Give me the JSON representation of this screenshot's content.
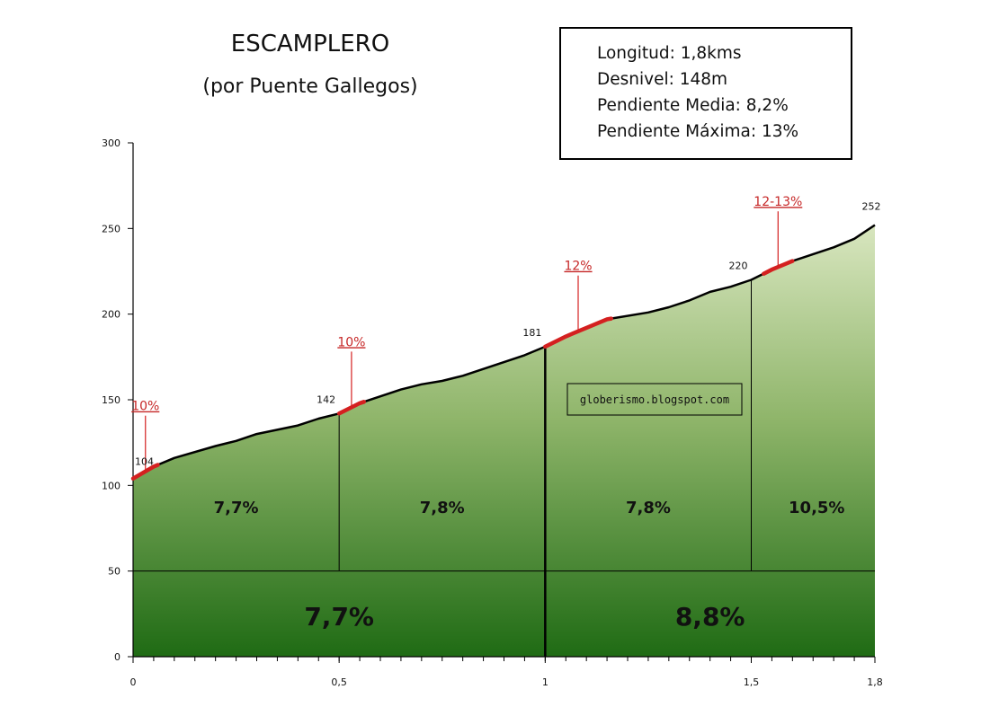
{
  "title": "ESCAMPLERO",
  "subtitle": "(por Puente Gallegos)",
  "info": [
    "Longitud: 1,8kms",
    "Desnivel: 148m",
    "Pendiente Media: 8,2%",
    "Pendiente Máxima: 13%"
  ],
  "watermark": "globerismo.blogspot.com",
  "chart_data": {
    "type": "area",
    "xlim": [
      0,
      1.8
    ],
    "ylim": [
      0,
      300
    ],
    "x_ticks": [
      {
        "value": 0,
        "label": "0"
      },
      {
        "value": 0.5,
        "label": "0,5"
      },
      {
        "value": 1,
        "label": "1"
      },
      {
        "value": 1.5,
        "label": "1,5"
      },
      {
        "value": 1.8,
        "label": "1,8"
      }
    ],
    "y_ticks": [
      {
        "value": 0,
        "label": "0"
      },
      {
        "value": 50,
        "label": "50"
      },
      {
        "value": 100,
        "label": "100"
      },
      {
        "value": 150,
        "label": "150"
      },
      {
        "value": 200,
        "label": "200"
      },
      {
        "value": 250,
        "label": "250"
      },
      {
        "value": 300,
        "label": "300"
      }
    ],
    "profile": [
      [
        0,
        104
      ],
      [
        0.05,
        111
      ],
      [
        0.1,
        116
      ],
      [
        0.2,
        123
      ],
      [
        0.25,
        126
      ],
      [
        0.3,
        130
      ],
      [
        0.4,
        135
      ],
      [
        0.45,
        139
      ],
      [
        0.5,
        142
      ],
      [
        0.55,
        148
      ],
      [
        0.6,
        152
      ],
      [
        0.65,
        156
      ],
      [
        0.7,
        159
      ],
      [
        0.75,
        161
      ],
      [
        0.8,
        164
      ],
      [
        0.9,
        172
      ],
      [
        0.95,
        176
      ],
      [
        1,
        181
      ],
      [
        1.05,
        187
      ],
      [
        1.1,
        192
      ],
      [
        1.15,
        197
      ],
      [
        1.25,
        201
      ],
      [
        1.3,
        204
      ],
      [
        1.35,
        208
      ],
      [
        1.4,
        213
      ],
      [
        1.45,
        216
      ],
      [
        1.5,
        220
      ],
      [
        1.55,
        226
      ],
      [
        1.6,
        231
      ],
      [
        1.65,
        235
      ],
      [
        1.7,
        239
      ],
      [
        1.75,
        244
      ],
      [
        1.8,
        252
      ]
    ],
    "point_labels": [
      {
        "x": 0,
        "y": 104,
        "label": "104"
      },
      {
        "x": 0.5,
        "y": 142,
        "label": "142"
      },
      {
        "x": 1,
        "y": 181,
        "label": "181"
      },
      {
        "x": 1.5,
        "y": 220,
        "label": "220"
      },
      {
        "x": 1.8,
        "y": 252,
        "label": "252"
      }
    ],
    "steep_segments": [
      {
        "from": 0,
        "to": 0.06,
        "label": "10%"
      },
      {
        "from": 0.5,
        "to": 0.56,
        "label": "10%"
      },
      {
        "from": 1,
        "to": 1.16,
        "label": "12%"
      },
      {
        "from": 1.53,
        "to": 1.6,
        "label": "12-13%"
      }
    ],
    "section_gradients": [
      {
        "from": 0,
        "to": 0.5,
        "label": "7,7%"
      },
      {
        "from": 0.5,
        "to": 1,
        "label": "7,8%"
      },
      {
        "from": 1,
        "to": 1.5,
        "label": "7,8%"
      },
      {
        "from": 1.5,
        "to": 1.8,
        "label": "10,5%"
      }
    ],
    "km_gradients": [
      {
        "from": 0,
        "to": 1,
        "label": "7,7%"
      },
      {
        "from": 1,
        "to": 1.8,
        "label": "8,8%"
      }
    ],
    "baseline_y": 50,
    "colors": {
      "fill_top": "#d8e6bf",
      "fill_mid": "#8fb56a",
      "fill_bottom": "#1f6b14",
      "line": "#000000",
      "steep": "#d42020"
    }
  }
}
